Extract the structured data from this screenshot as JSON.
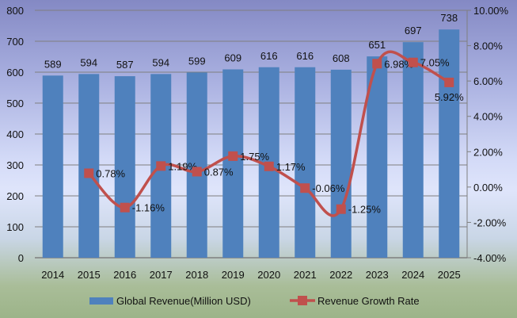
{
  "chart_data": {
    "type": "bar+line",
    "categories": [
      "2014",
      "2015",
      "2016",
      "2017",
      "2018",
      "2019",
      "2020",
      "2021",
      "2022",
      "2023",
      "2024",
      "2025"
    ],
    "series": [
      {
        "name": "Global Revenue(Million USD)",
        "type": "bar",
        "axis": "left",
        "color": "#4f81bd",
        "values": [
          589,
          594,
          587,
          594,
          599,
          609,
          616,
          616,
          608,
          651,
          697,
          738
        ],
        "labels": [
          "589",
          "594",
          "587",
          "594",
          "599",
          "609",
          "616",
          "616",
          "608",
          "651",
          "697",
          "738"
        ]
      },
      {
        "name": "Revenue Growth Rate",
        "type": "line",
        "axis": "right",
        "color": "#c0504d",
        "smooth": true,
        "values": [
          null,
          0.78,
          -1.16,
          1.19,
          0.87,
          1.75,
          1.17,
          -0.06,
          -1.25,
          6.98,
          7.05,
          5.92
        ],
        "labels": [
          "",
          "0.78%",
          "-1.16%",
          "1.19%",
          "0.87%",
          "1.75%",
          "1.17%",
          "-0.06%",
          "-1.25%",
          "6.98%",
          "7.05%",
          "5.92%"
        ]
      }
    ],
    "y_left": {
      "range": [
        0,
        800
      ],
      "ticks": [
        "0",
        "100",
        "200",
        "300",
        "400",
        "500",
        "600",
        "700",
        "800"
      ]
    },
    "y_right": {
      "range": [
        -4,
        10
      ],
      "ticks": [
        "-4.00%",
        "-2.00%",
        "0.00%",
        "2.00%",
        "4.00%",
        "6.00%",
        "8.00%",
        "10.00%"
      ]
    },
    "grid": true,
    "legend": "bottom"
  }
}
